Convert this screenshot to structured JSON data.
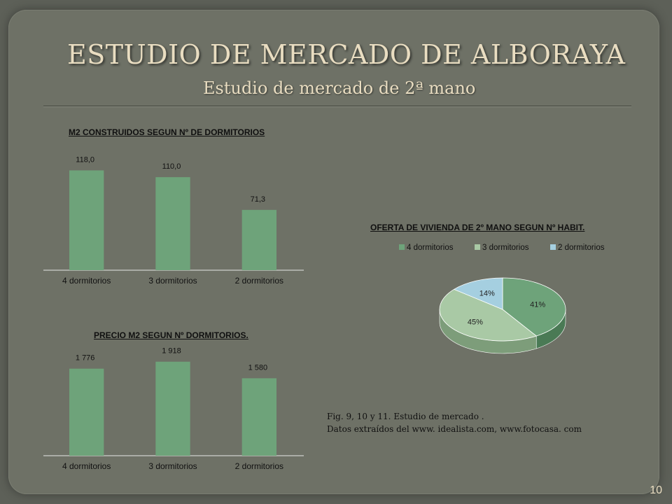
{
  "slide": {
    "title": "ESTUDIO DE MERCADO DE ALBORAYA",
    "subtitle": "Estudio de mercado de 2ª mano",
    "caption_line1": "Fig. 9, 10 y 11. Estudio de mercado .",
    "caption_line2": "Datos extraídos del www. idealista.com, www.fotocasa. com",
    "page_number": "10"
  },
  "colors": {
    "bar": "#6ea37a",
    "pie": [
      "#6ea37a",
      "#a9c9a5",
      "#a5cfe0"
    ],
    "pie_side": [
      "#4a7a55",
      "#7d9d7a",
      "#7faabb"
    ]
  },
  "chart_data": [
    {
      "type": "bar",
      "title": "M2 CONSTRUIDOS SEGUN Nº DE DORMITORIOS",
      "categories": [
        "4 dormitorios",
        "3 dormitorios",
        "2 dormitorios"
      ],
      "values": [
        118.0,
        110.0,
        71.3
      ],
      "labels": [
        "118,0",
        "110,0",
        "71,3"
      ],
      "ylim": [
        0,
        120
      ],
      "grid": false
    },
    {
      "type": "pie",
      "title": "OFERTA DE VIVIENDA DE 2º MANO SEGUN Nº HABIT.",
      "categories": [
        "4 dormitorios",
        "3 dormitorios",
        "2 dormitorios"
      ],
      "values": [
        41,
        45,
        14
      ],
      "labels": [
        "41%",
        "45%",
        "14%"
      ],
      "legend": "top"
    },
    {
      "type": "bar",
      "title": "PRECIO M2 SEGUN Nº DORMITORIOS",
      "title_suffix": ".",
      "categories": [
        "4 dormitorios",
        "3 dormitorios",
        "2 dormitorios"
      ],
      "values": [
        1776,
        1918,
        1580
      ],
      "labels": [
        "1 776",
        "1 918",
        "1 580"
      ],
      "ylim": [
        0,
        2000
      ],
      "grid": false
    }
  ]
}
